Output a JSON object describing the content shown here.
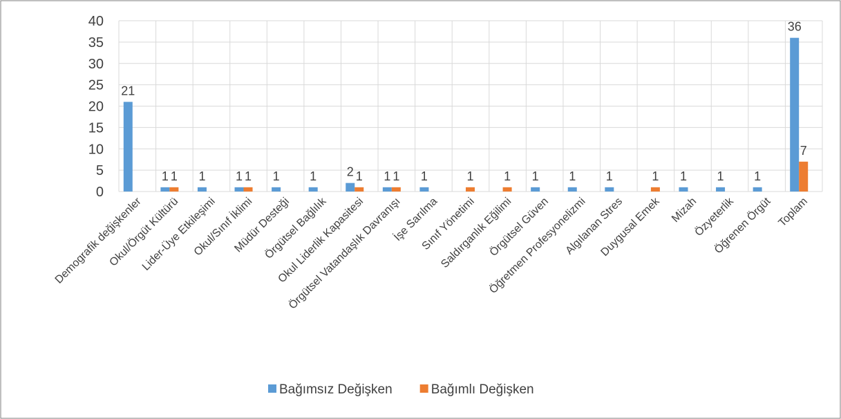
{
  "chart_data": {
    "type": "bar",
    "categories": [
      "Demografik değişkenler",
      "Okul/Örgüt Kültürü",
      "Lider-Üye Etkileşimi",
      "Okul/Sınıf İklimi",
      "Müdür Desteği",
      "Örgütsel Bağlılık",
      "Okul Liderlik Kapasitesi",
      "Örgütsel Vatandaşlık Davranışı",
      "İşe Sarılma",
      "Sınıf Yönetimi",
      "Saldırganlık Eğilimi",
      "Örgütsel Güven",
      "Öğretmen Profesyonelizmi",
      "Algılanan Stres",
      "Duygusal Emek",
      "Mizah",
      "Özyeterlik",
      "Öğrenen Örgüt",
      "Toplam"
    ],
    "series": [
      {
        "name": "Bağımsız Değişken",
        "color": "#5b9bd5",
        "values": [
          21,
          1,
          1,
          1,
          1,
          1,
          2,
          1,
          1,
          null,
          null,
          1,
          1,
          1,
          null,
          1,
          1,
          1,
          36
        ]
      },
      {
        "name": "Bağımlı Değişken",
        "color": "#ed7d31",
        "values": [
          null,
          1,
          null,
          1,
          null,
          null,
          1,
          1,
          null,
          1,
          1,
          null,
          null,
          null,
          1,
          null,
          null,
          null,
          7
        ]
      }
    ],
    "ylim": [
      0,
      40
    ],
    "yticks": [
      0,
      5,
      10,
      15,
      20,
      25,
      30,
      35,
      40
    ],
    "grid": true,
    "legend": "bottom"
  }
}
